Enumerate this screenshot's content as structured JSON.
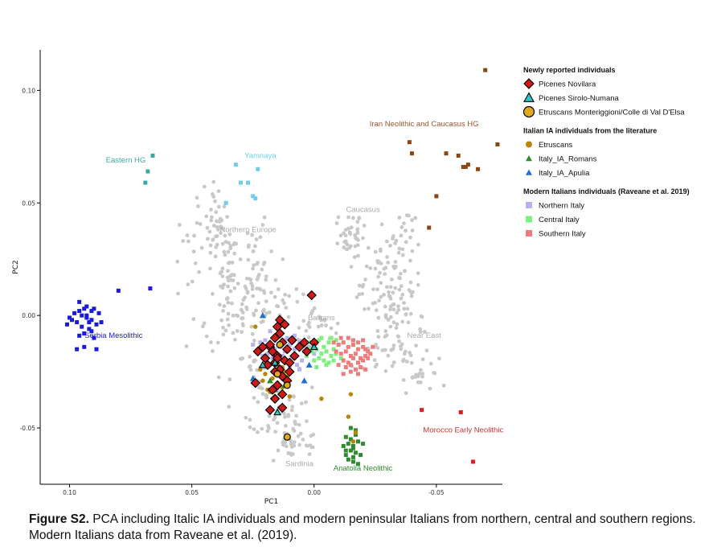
{
  "chart_data": {
    "type": "scatter",
    "title": "",
    "xlabel": "PC1",
    "ylabel": "PC2",
    "xlim": [
      0.112,
      -0.077
    ],
    "ylim": [
      -0.075,
      0.118
    ],
    "x_reversed": true,
    "x_ticks": [
      0.1,
      0.05,
      0.0,
      -0.05
    ],
    "x_tick_labels": [
      "0.10",
      "0.05",
      "0.00",
      "-0.05"
    ],
    "y_ticks": [
      0.1,
      0.05,
      0.0,
      -0.05
    ],
    "y_tick_labels": [
      "0.10",
      "0.05",
      "0.00",
      "-0.05"
    ],
    "grid": false,
    "legend_position": "right",
    "legend": {
      "groups": [
        {
          "heading": "Newly reported individuals",
          "items": [
            {
              "label": "Picenes Novilara",
              "marker": "diamond",
              "color": "#cc1a1a"
            },
            {
              "label": "Picenes Sirolo-Numana",
              "marker": "triangle-open",
              "color": "#2ac7c7"
            },
            {
              "label": "Etruscans Monteriggioni/Colle di Val D'Elsa",
              "marker": "circle-open",
              "color": "#e0a91c"
            }
          ]
        },
        {
          "heading": "Italian IA individuals from the literature",
          "items": [
            {
              "label": "Etruscans",
              "marker": "circle",
              "color": "#b8860b"
            },
            {
              "label": "Italy_IA_Romans",
              "marker": "triangle",
              "color": "#2e8b2e"
            },
            {
              "label": "Italy_IA_Apulia",
              "marker": "triangle",
              "color": "#1f6fd1"
            }
          ]
        },
        {
          "heading": "Modern Italians individuals (Raveane et al. 2019)",
          "items": [
            {
              "label": "Northern Italy",
              "marker": "square",
              "color": "#b8b2f0"
            },
            {
              "label": "Central Italy",
              "marker": "square",
              "color": "#7cf07c"
            },
            {
              "label": "Southern Italy",
              "marker": "square",
              "color": "#f07b7b"
            }
          ]
        }
      ]
    },
    "annotations": [
      {
        "text": "Iran Neolithic and Caucasus HG",
        "x": -0.045,
        "y": 0.084,
        "color": "#a0522d"
      },
      {
        "text": "Eastern HG",
        "x": 0.077,
        "y": 0.068,
        "color": "#3aa9a5"
      },
      {
        "text": "Yamnaya",
        "x": 0.022,
        "y": 0.07,
        "color": "#6fcdea"
      },
      {
        "text": "Caucasus",
        "x": -0.02,
        "y": 0.046,
        "color": "#a9a9a9"
      },
      {
        "text": "Northern Europe",
        "x": 0.027,
        "y": 0.037,
        "color": "#a9a9a9"
      },
      {
        "text": "Balkans",
        "x": -0.003,
        "y": -0.002,
        "color": "#a9a9a9"
      },
      {
        "text": "Near East",
        "x": -0.045,
        "y": -0.01,
        "color": "#a9a9a9"
      },
      {
        "text": "Serbia Mesolithic",
        "x": 0.082,
        "y": -0.01,
        "color": "#1a1ad9"
      },
      {
        "text": "Morocco Early Neolithic",
        "x": -0.061,
        "y": -0.052,
        "color": "#c0392b"
      },
      {
        "text": "Sardinia",
        "x": 0.006,
        "y": -0.067,
        "color": "#a9a9a9"
      },
      {
        "text": "Anatolia Neolithic",
        "x": -0.02,
        "y": -0.069,
        "color": "#2e8b2e"
      }
    ],
    "series": [
      {
        "name": "Iran Neolithic and Caucasus HG",
        "marker": "square",
        "color": "#8b4513",
        "x": [
          -0.07,
          -0.039,
          -0.04,
          -0.054,
          -0.059,
          -0.063,
          -0.062,
          -0.061,
          -0.067,
          -0.075,
          -0.05,
          -0.047
        ],
        "y": [
          0.109,
          0.077,
          0.072,
          0.072,
          0.071,
          0.067,
          0.066,
          0.066,
          0.065,
          0.076,
          0.053,
          0.039
        ]
      },
      {
        "name": "Eastern HG",
        "marker": "square",
        "color": "#3aa9a5",
        "x": [
          0.066,
          0.068,
          0.069
        ],
        "y": [
          0.071,
          0.064,
          0.059
        ]
      },
      {
        "name": "Yamnaya",
        "marker": "square",
        "color": "#6fcdea",
        "x": [
          0.032,
          0.023,
          0.03,
          0.027,
          0.025,
          0.024,
          0.036
        ],
        "y": [
          0.067,
          0.065,
          0.059,
          0.059,
          0.053,
          0.052,
          0.05
        ]
      },
      {
        "name": "Serbia Mesolithic",
        "marker": "square",
        "color": "#1a1ad9",
        "x": [
          0.096,
          0.094,
          0.091,
          0.09,
          0.088,
          0.093,
          0.099,
          0.101,
          0.097,
          0.095,
          0.092,
          0.089,
          0.094,
          0.096,
          0.09,
          0.087,
          0.098,
          0.093,
          0.091,
          0.095,
          0.1,
          0.092,
          0.094,
          0.097,
          0.089,
          0.093,
          0.096,
          0.091,
          0.08,
          0.067
        ],
        "y": [
          0.006,
          0.003,
          0.002,
          0.003,
          0.001,
          -0.001,
          -0.002,
          -0.004,
          -0.003,
          -0.005,
          -0.006,
          -0.004,
          -0.008,
          -0.009,
          -0.01,
          -0.003,
          0.001,
          0.004,
          -0.002,
          0.0,
          -0.001,
          -0.003,
          -0.014,
          -0.015,
          -0.015,
          0.0,
          0.002,
          -0.007,
          0.011,
          0.012
        ]
      },
      {
        "name": "Morocco Early Neolithic",
        "marker": "square",
        "color": "#e31b1b",
        "x": [
          -0.044,
          -0.06,
          -0.065
        ],
        "y": [
          -0.042,
          -0.043,
          -0.065
        ]
      },
      {
        "name": "Anatolia Neolithic",
        "marker": "square",
        "color": "#2e8b2e",
        "x": [
          -0.013,
          -0.015,
          -0.017,
          -0.014,
          -0.016,
          -0.018,
          -0.012,
          -0.015,
          -0.017,
          -0.013,
          -0.016,
          -0.019,
          -0.014,
          -0.016,
          -0.018,
          -0.015,
          -0.017,
          -0.013,
          -0.016,
          -0.02
        ],
        "y": [
          -0.054,
          -0.055,
          -0.053,
          -0.057,
          -0.058,
          -0.056,
          -0.058,
          -0.06,
          -0.061,
          -0.062,
          -0.063,
          -0.062,
          -0.064,
          -0.065,
          -0.066,
          -0.05,
          -0.051,
          -0.06,
          -0.059,
          -0.057
        ]
      },
      {
        "name": "Northern Italy",
        "marker": "square",
        "color": "#b8b2f0",
        "x": [
          0.025,
          0.022,
          0.02,
          0.018,
          0.016,
          0.014,
          0.012,
          0.01,
          0.008,
          0.006,
          0.004,
          0.002,
          0.0,
          0.021,
          0.019,
          0.017,
          0.015,
          0.013,
          0.011,
          0.009,
          0.007,
          0.005,
          0.003,
          0.001,
          0.023,
          0.012,
          0.016,
          0.01,
          0.006,
          0.014,
          0.019,
          0.008,
          0.003,
          0.018,
          0.011
        ],
        "y": [
          -0.013,
          -0.012,
          -0.011,
          -0.013,
          -0.015,
          -0.014,
          -0.016,
          -0.013,
          -0.015,
          -0.012,
          -0.016,
          -0.014,
          -0.017,
          -0.018,
          -0.017,
          -0.019,
          -0.02,
          -0.018,
          -0.021,
          -0.019,
          -0.022,
          -0.02,
          -0.018,
          -0.015,
          -0.016,
          -0.011,
          -0.022,
          -0.023,
          -0.024,
          -0.024,
          -0.021,
          -0.009,
          -0.012,
          -0.007,
          -0.01
        ]
      },
      {
        "name": "Central Italy",
        "marker": "square",
        "color": "#7cf07c",
        "x": [
          0.002,
          0.0,
          -0.002,
          -0.004,
          -0.006,
          -0.008,
          -0.01,
          0.001,
          -0.001,
          -0.003,
          -0.005,
          -0.007,
          -0.009,
          -0.011,
          0.003,
          -0.004,
          -0.006,
          -0.002,
          -0.008,
          -0.005,
          0.0,
          -0.007,
          -0.003,
          -0.009,
          -0.001,
          0.002
        ],
        "y": [
          -0.012,
          -0.013,
          -0.011,
          -0.014,
          -0.012,
          -0.015,
          -0.013,
          -0.016,
          -0.015,
          -0.017,
          -0.016,
          -0.018,
          -0.017,
          -0.019,
          -0.018,
          -0.02,
          -0.021,
          -0.019,
          -0.02,
          -0.022,
          -0.02,
          -0.01,
          -0.01,
          -0.011,
          -0.023,
          -0.015
        ]
      },
      {
        "name": "Southern Italy",
        "marker": "square",
        "color": "#f07b7b",
        "x": [
          -0.008,
          -0.01,
          -0.012,
          -0.014,
          -0.016,
          -0.018,
          -0.02,
          -0.022,
          -0.009,
          -0.011,
          -0.013,
          -0.015,
          -0.017,
          -0.019,
          -0.021,
          -0.023,
          -0.012,
          -0.014,
          -0.016,
          -0.018,
          -0.02,
          -0.01,
          -0.013,
          -0.015,
          -0.017,
          -0.019,
          -0.021,
          -0.011,
          -0.014,
          -0.016,
          -0.018,
          -0.02,
          -0.022,
          -0.024,
          -0.012,
          -0.015,
          -0.018,
          -0.021
        ],
        "y": [
          -0.012,
          -0.013,
          -0.012,
          -0.014,
          -0.013,
          -0.015,
          -0.014,
          -0.016,
          -0.016,
          -0.017,
          -0.016,
          -0.018,
          -0.017,
          -0.019,
          -0.018,
          -0.017,
          -0.02,
          -0.021,
          -0.019,
          -0.021,
          -0.02,
          -0.022,
          -0.023,
          -0.022,
          -0.024,
          -0.023,
          -0.015,
          -0.01,
          -0.01,
          -0.011,
          -0.012,
          -0.011,
          -0.019,
          -0.014,
          -0.026,
          -0.025,
          -0.026,
          -0.024
        ]
      },
      {
        "name": "Etruscans",
        "marker": "circle",
        "color": "#b8860b",
        "x": [
          0.022,
          0.02,
          0.017,
          0.015,
          0.013,
          0.011,
          0.019,
          0.014,
          0.012,
          0.016,
          0.018,
          0.01,
          0.021,
          0.013,
          0.015,
          -0.003,
          -0.015,
          -0.014,
          -0.017,
          -0.016,
          0.024
        ],
        "y": [
          -0.024,
          -0.026,
          -0.028,
          -0.03,
          -0.032,
          -0.027,
          -0.033,
          -0.035,
          -0.025,
          -0.037,
          -0.034,
          -0.036,
          -0.029,
          -0.023,
          -0.022,
          -0.037,
          -0.035,
          -0.045,
          -0.052,
          -0.056,
          -0.005
        ]
      },
      {
        "name": "Italy_IA_Romans",
        "marker": "triangle",
        "color": "#2e8b2e",
        "x": [
          0.018,
          0.016,
          0.014,
          0.012
        ],
        "y": [
          -0.029,
          -0.033,
          -0.026,
          -0.031
        ]
      },
      {
        "name": "Italy_IA_Apulia",
        "marker": "triangle",
        "color": "#1f6fd1",
        "x": [
          0.013,
          0.021,
          0.025,
          0.004,
          0.002
        ],
        "y": [
          -0.002,
          0.0,
          -0.028,
          -0.029,
          -0.022
        ]
      },
      {
        "name": "Picenes Novilara",
        "marker": "diamond",
        "color": "#cc1a1a",
        "x": [
          0.001,
          0.015,
          0.014,
          0.016,
          0.013,
          0.018,
          0.011,
          0.017,
          0.015,
          0.012,
          0.02,
          0.019,
          0.01,
          0.008,
          0.014,
          0.016,
          0.013,
          0.021,
          0.018,
          0.023,
          0.011,
          0.015,
          0.017,
          0.013,
          0.016,
          0.006,
          0.004,
          0.009,
          0.003,
          0.0,
          0.014,
          0.012,
          0.024,
          0.01,
          0.016,
          0.013,
          0.018,
          0.015
        ],
        "y": [
          0.009,
          -0.005,
          -0.008,
          -0.01,
          -0.012,
          -0.014,
          -0.015,
          -0.016,
          -0.018,
          -0.02,
          -0.019,
          -0.022,
          -0.021,
          -0.018,
          -0.024,
          -0.025,
          -0.027,
          -0.014,
          -0.013,
          -0.016,
          -0.029,
          -0.031,
          -0.033,
          -0.035,
          -0.037,
          -0.014,
          -0.012,
          -0.011,
          -0.016,
          -0.012,
          -0.002,
          -0.004,
          -0.03,
          -0.025,
          -0.021,
          -0.041,
          -0.042,
          -0.019
        ]
      },
      {
        "name": "Picenes Sirolo-Numana",
        "marker": "triangle-open",
        "color": "#2ac7c7",
        "x": [
          0.021,
          0.015,
          0.016,
          0.0
        ],
        "y": [
          -0.022,
          -0.043,
          -0.021,
          -0.014
        ]
      },
      {
        "name": "Etruscans Monteriggioni/Colle di Val D'Elsa",
        "marker": "circle-open",
        "color": "#e0a91c",
        "x": [
          0.014,
          0.011,
          0.015,
          0.011
        ],
        "y": [
          -0.013,
          -0.031,
          -0.026,
          -0.054
        ]
      }
    ]
  },
  "caption": {
    "label": "Figure S2.",
    "text": " PCA including Italic IA individuals and modern peninsular Italians from northern, central and southern regions. Modern Italians data from Raveane et al. (2019)."
  }
}
